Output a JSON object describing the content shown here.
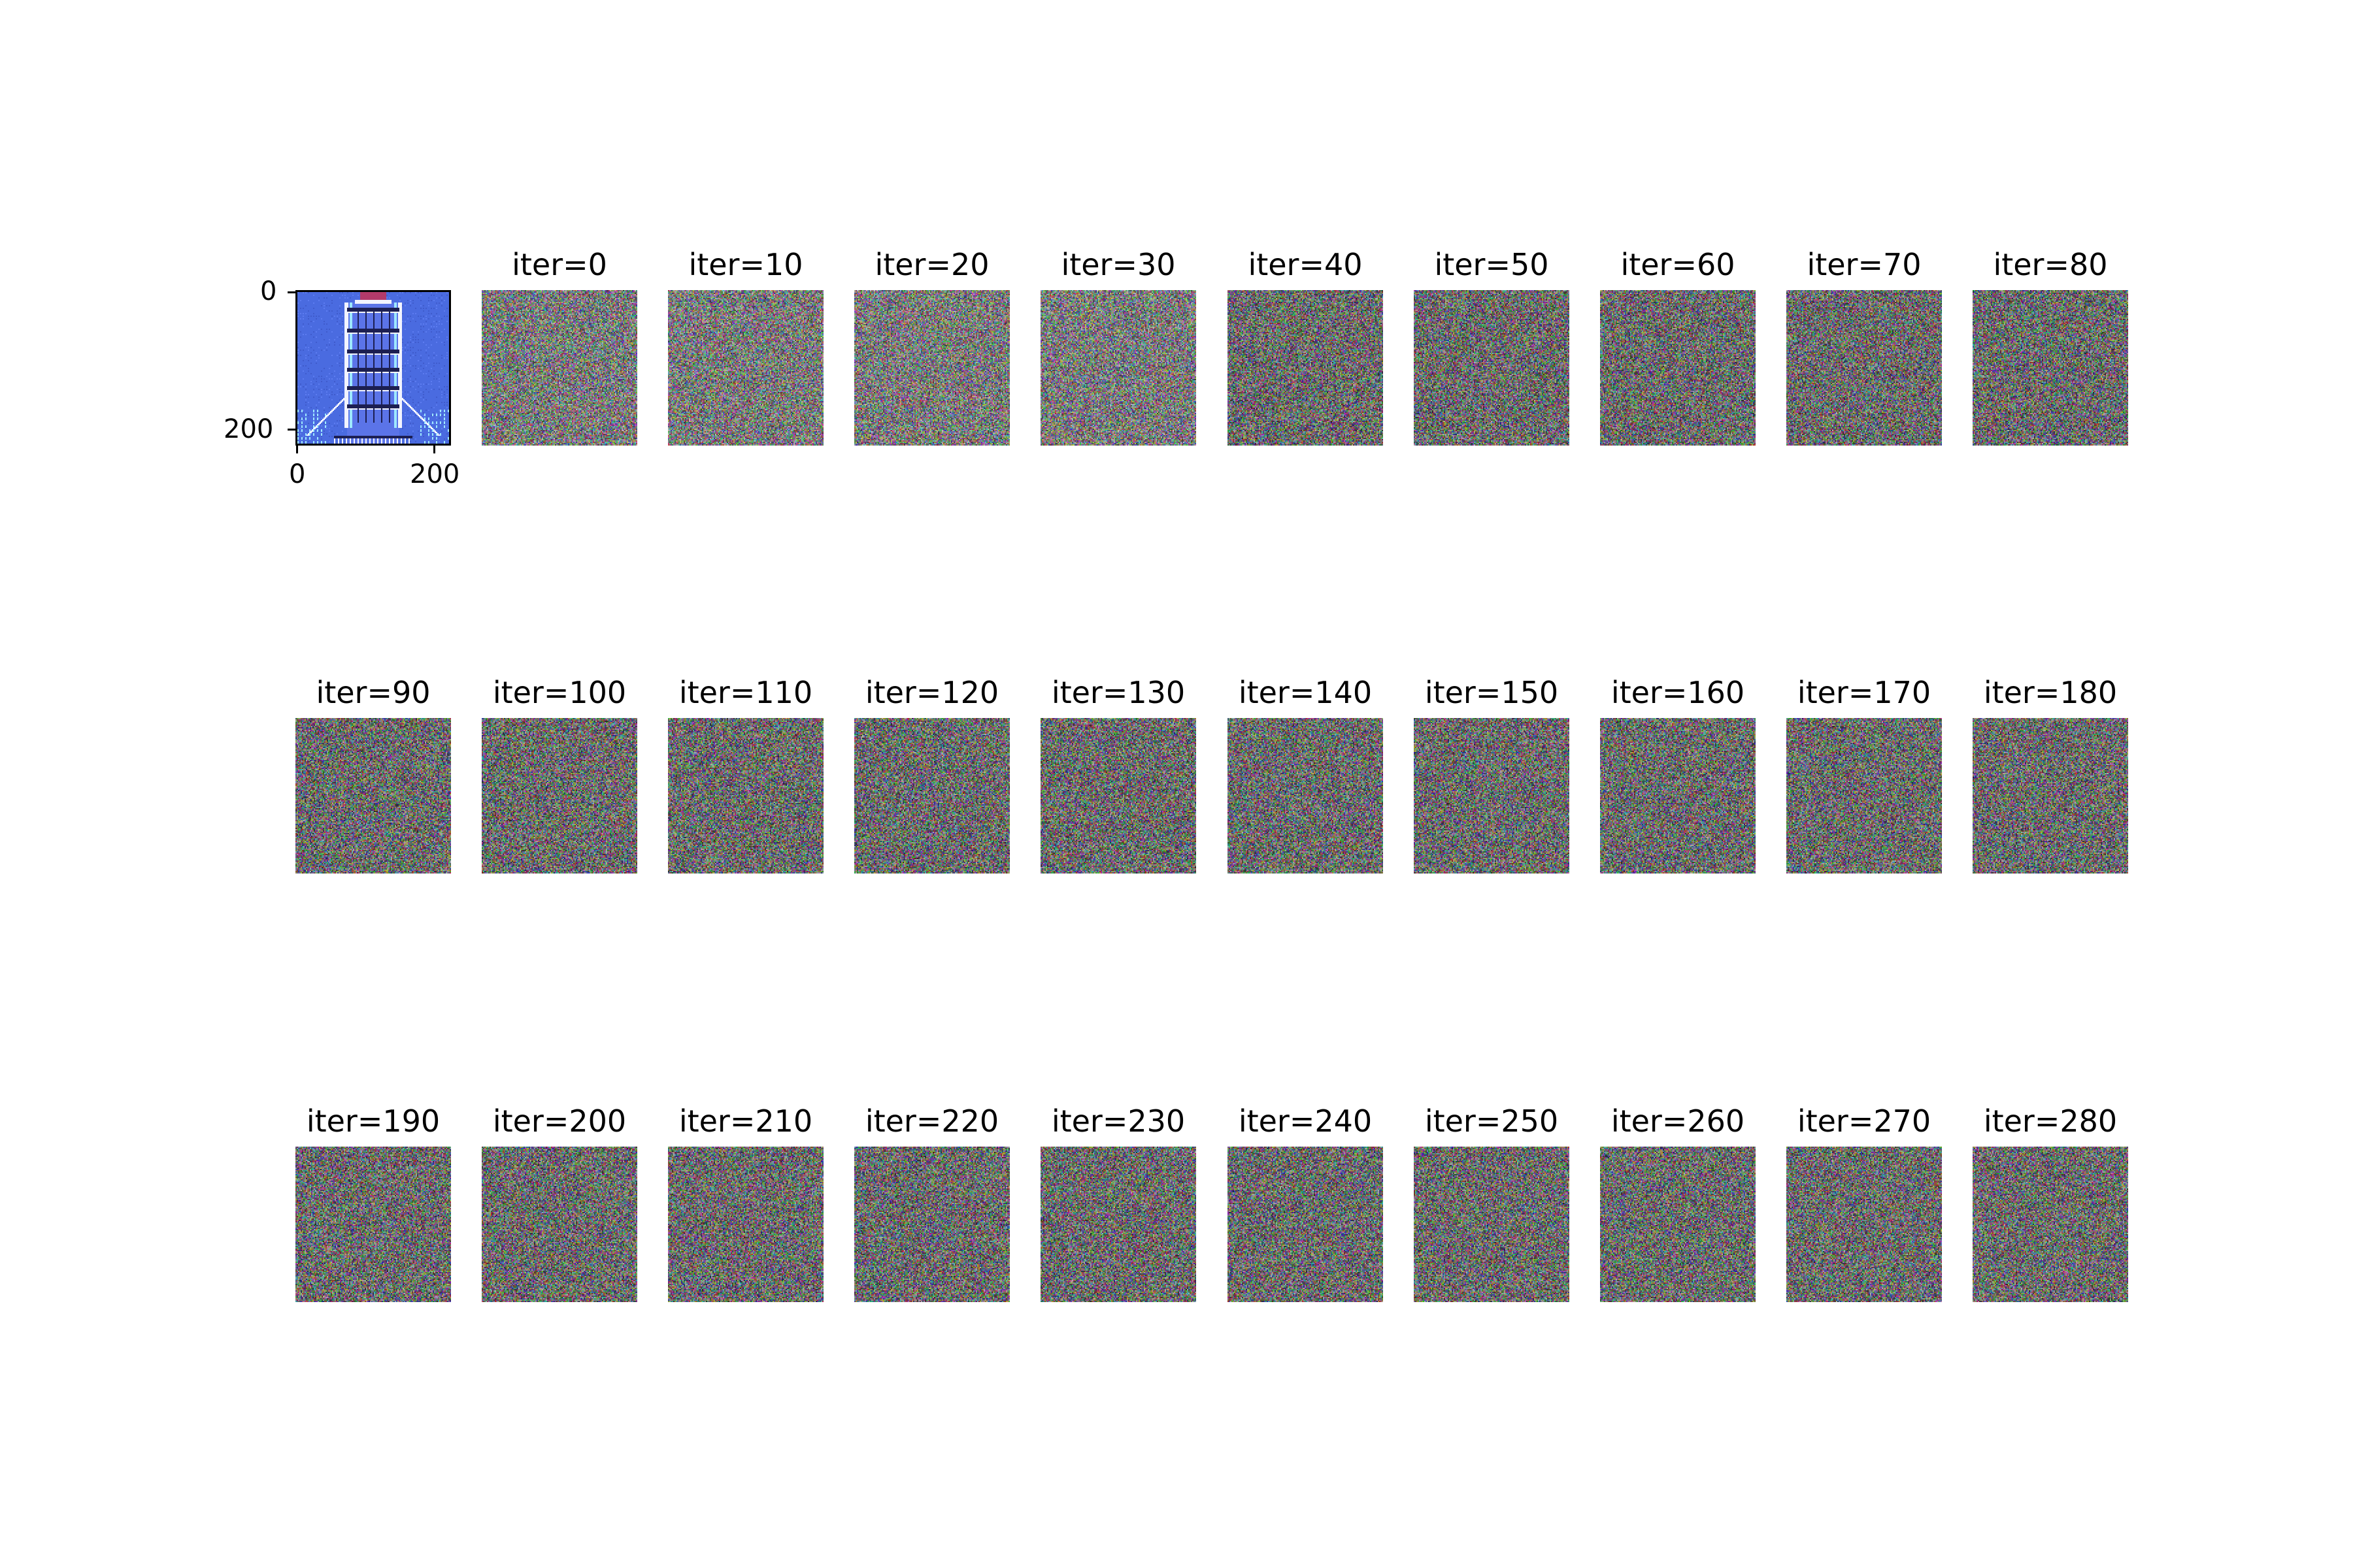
{
  "reference_image": {
    "description_icon": "lighthouse-image",
    "y_tick_labels": [
      "0",
      "200"
    ],
    "x_tick_labels": [
      "0",
      "200"
    ],
    "colors": {
      "background_blue": "#4a6be0",
      "dark_navy": "#1c1f52",
      "light_cyan": "#9ee8ff",
      "white": "#f2f4ff"
    }
  },
  "tiles": [
    {
      "label": "iter=0"
    },
    {
      "label": "iter=10"
    },
    {
      "label": "iter=20"
    },
    {
      "label": "iter=30"
    },
    {
      "label": "iter=40"
    },
    {
      "label": "iter=50"
    },
    {
      "label": "iter=60"
    },
    {
      "label": "iter=70"
    },
    {
      "label": "iter=80"
    },
    {
      "label": "iter=90"
    },
    {
      "label": "iter=100"
    },
    {
      "label": "iter=110"
    },
    {
      "label": "iter=120"
    },
    {
      "label": "iter=130"
    },
    {
      "label": "iter=140"
    },
    {
      "label": "iter=150"
    },
    {
      "label": "iter=160"
    },
    {
      "label": "iter=170"
    },
    {
      "label": "iter=180"
    },
    {
      "label": "iter=190"
    },
    {
      "label": "iter=200"
    },
    {
      "label": "iter=210"
    },
    {
      "label": "iter=220"
    },
    {
      "label": "iter=230"
    },
    {
      "label": "iter=240"
    },
    {
      "label": "iter=250"
    },
    {
      "label": "iter=260"
    },
    {
      "label": "iter=270"
    },
    {
      "label": "iter=280"
    }
  ],
  "noise_color": "#7a7a7a"
}
